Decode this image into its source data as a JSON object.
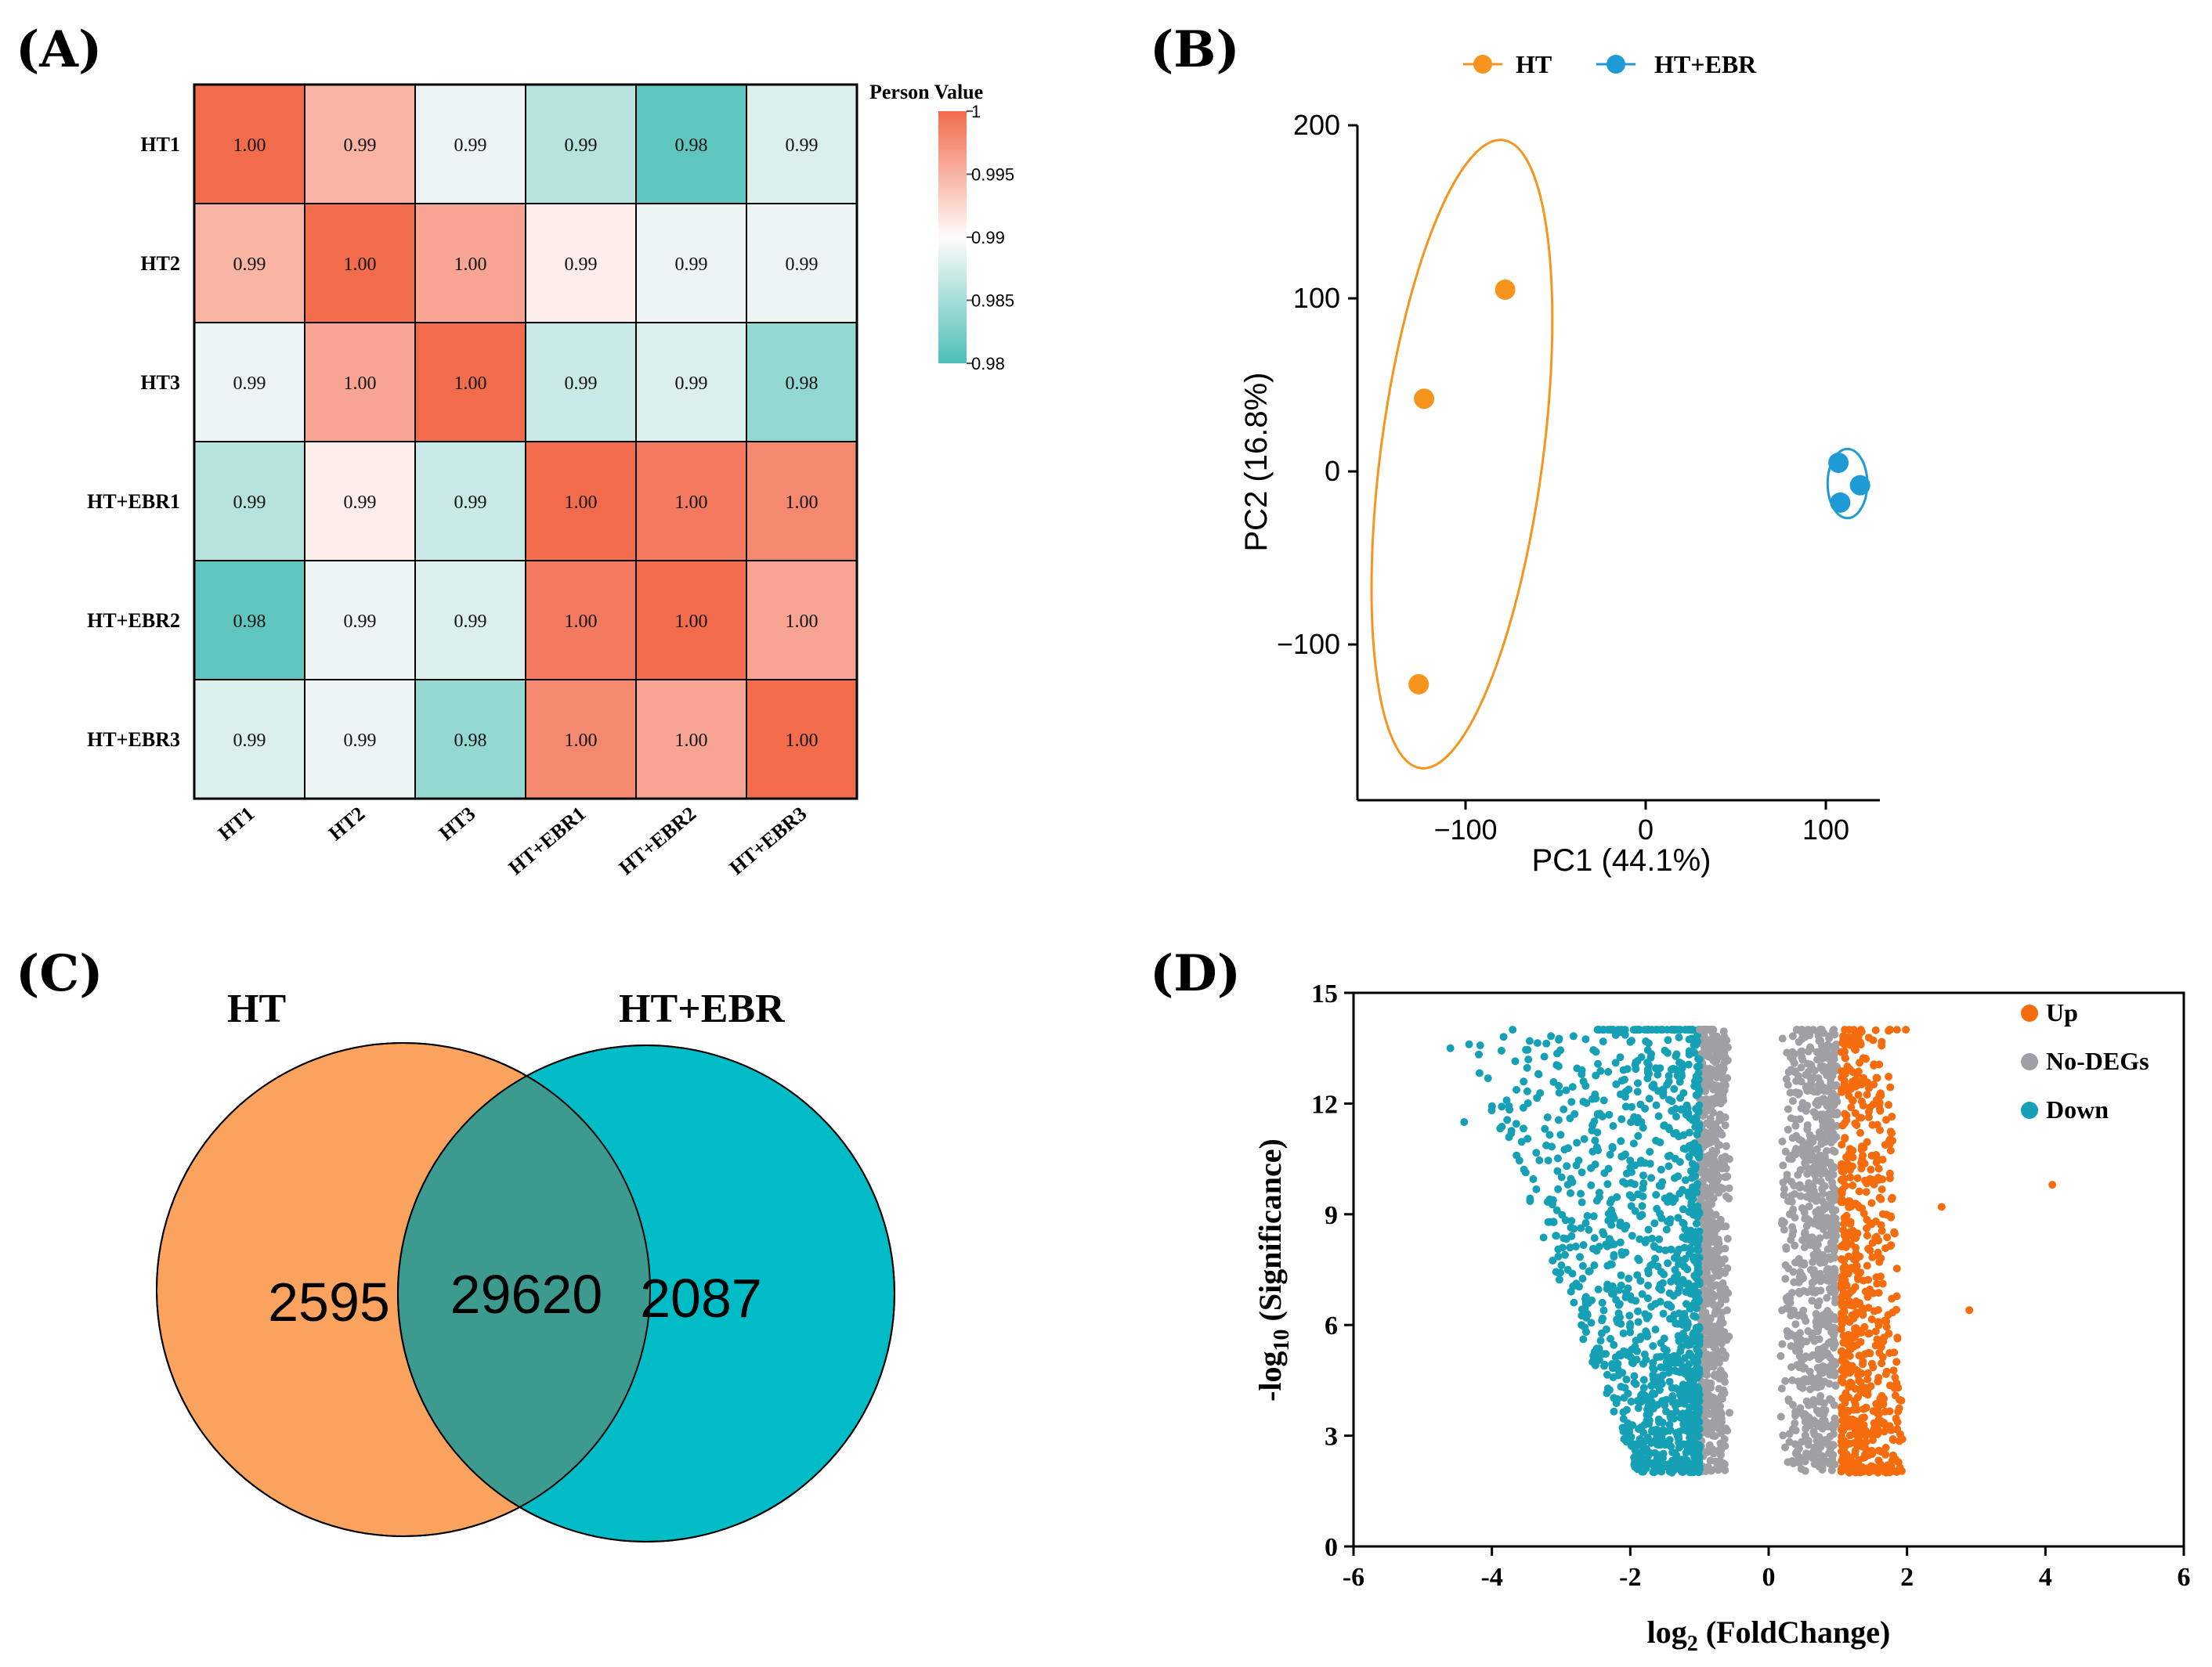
{
  "figure": {
    "panel_labels": [
      "(A)",
      "(B)",
      "(C)",
      "(D)"
    ]
  },
  "colors": {
    "ht": "#f7941d",
    "ht_ebr": "#1e9bd7",
    "venn_ht": "#f9a35f",
    "venn_ebr": "#00bcc7",
    "venn_overlap": "#3d9a8e",
    "up": "#f46c0e",
    "nodeg": "#a0a0a4",
    "down": "#16a0b5",
    "heat_high": "#f26c4c",
    "heat_mid": "#fffbfb",
    "heat_low": "#4cc0b6"
  },
  "chart_data": [
    {
      "type": "heatmap",
      "panel": "(A)",
      "rows": [
        "HT1",
        "HT2",
        "HT3",
        "HT+EBR1",
        "HT+EBR2",
        "HT+EBR3"
      ],
      "cols": [
        "HT1",
        "HT2",
        "HT3",
        "HT+EBR1",
        "HT+EBR2",
        "HT+EBR3"
      ],
      "values": [
        [
          1.0,
          0.995,
          0.989,
          0.986,
          0.981,
          0.988
        ],
        [
          0.995,
          1.0,
          0.996,
          0.991,
          0.989,
          0.989
        ],
        [
          0.989,
          0.996,
          1.0,
          0.987,
          0.988,
          0.984
        ],
        [
          0.986,
          0.991,
          0.987,
          1.0,
          0.999,
          0.998
        ],
        [
          0.981,
          0.989,
          0.988,
          0.999,
          1.0,
          0.996
        ],
        [
          0.988,
          0.989,
          0.984,
          0.998,
          0.996,
          1.0
        ]
      ],
      "labels": [
        [
          "1.00",
          "0.99",
          "0.99",
          "0.99",
          "0.98",
          "0.99"
        ],
        [
          "0.99",
          "1.00",
          "1.00",
          "0.99",
          "0.99",
          "0.99"
        ],
        [
          "0.99",
          "1.00",
          "1.00",
          "0.99",
          "0.99",
          "0.98"
        ],
        [
          "0.99",
          "0.99",
          "0.99",
          "1.00",
          "1.00",
          "1.00"
        ],
        [
          "0.98",
          "0.99",
          "0.99",
          "1.00",
          "1.00",
          "1.00"
        ],
        [
          "0.99",
          "0.99",
          "0.98",
          "1.00",
          "1.00",
          "1.00"
        ]
      ],
      "colorbar": {
        "title": "Person Value",
        "range": [
          0.98,
          1
        ],
        "ticks": [
          1,
          0.995,
          0.99,
          0.985,
          0.98
        ],
        "tick_labels": [
          "1",
          "0.995",
          "0.99",
          "0.985",
          "0.98"
        ]
      }
    },
    {
      "type": "scatter",
      "panel": "(B)",
      "xlabel": "PC1 (44.1%)",
      "ylabel": "PC2 (16.8%)",
      "xlim": [
        -160,
        130
      ],
      "ylim": [
        -190,
        200
      ],
      "xticks": [
        -100,
        0,
        100
      ],
      "xtick_labels": [
        "−100",
        "0",
        "100"
      ],
      "yticks": [
        200,
        100,
        0,
        -100
      ],
      "ytick_labels": [
        "200",
        "100",
        "0",
        "−100"
      ],
      "legend_position": "top",
      "series": [
        {
          "name": "HT",
          "points": [
            [
              -78,
              105
            ],
            [
              -123,
              42
            ],
            [
              -126,
              -123
            ]
          ],
          "ellipse": {
            "cx": -102,
            "cy": 10,
            "rx": 45,
            "ry": 183,
            "angle_deg": 7.5
          }
        },
        {
          "name": "HT+EBR",
          "points": [
            [
              107,
              5
            ],
            [
              119,
              -8
            ],
            [
              108,
              -18
            ]
          ],
          "ellipse": {
            "cx": 112,
            "cy": -7,
            "rx": 11,
            "ry": 20,
            "angle_deg": 0
          }
        }
      ]
    },
    {
      "type": "venn",
      "panel": "(C)",
      "sets": [
        "HT",
        "HT+EBR"
      ],
      "only_a": 2595,
      "overlap": 29620,
      "only_b": 2087,
      "only_a_label": "2595",
      "overlap_label": "29620",
      "only_b_label": "2087"
    },
    {
      "type": "scatter",
      "panel": "(D)",
      "subtype": "volcano",
      "xlabel": "log2 (FoldChange)",
      "xlabel_base": "log",
      "xlabel_sub": "2",
      "xlabel_rest": " (FoldChange)",
      "ylabel": "-log10 (Significance)",
      "ylabel_base": "-log",
      "ylabel_sub": "10",
      "ylabel_rest": " (Significance)",
      "xlim": [
        -6,
        6
      ],
      "ylim": [
        0,
        15
      ],
      "xticks": [
        -6,
        -4,
        -2,
        0,
        2,
        4,
        6
      ],
      "xtick_labels": [
        "-6",
        "-4",
        "-2",
        "0",
        "2",
        "4",
        "6"
      ],
      "yticks": [
        0,
        3,
        6,
        9,
        12,
        15
      ],
      "ytick_labels": [
        "0",
        "3",
        "6",
        "9",
        "12",
        "15"
      ],
      "fold_change_threshold": 1,
      "y_min_plotted": 2,
      "y_cap": 14,
      "legend_position": "top-right",
      "legend": [
        "Up",
        "No-DEGs",
        "Down"
      ],
      "outliers": [
        [
          4.1,
          9.8
        ],
        [
          2.9,
          6.4
        ],
        [
          -4.6,
          13.5
        ],
        [
          -4.4,
          11.5
        ],
        [
          2.5,
          9.2
        ],
        [
          -3.7,
          14.0
        ]
      ],
      "counts_approx": {
        "up": 650,
        "nodeg": 1500,
        "down": 1200
      }
    }
  ]
}
